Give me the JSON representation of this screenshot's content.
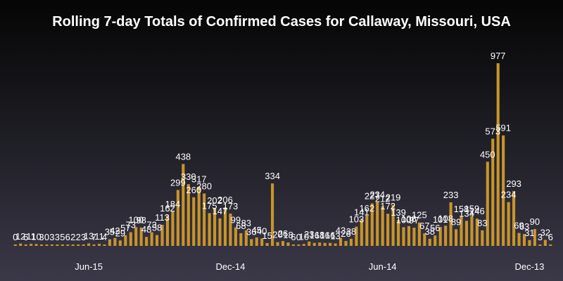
{
  "title": "Rolling 7-day Totals of Confirmed Cases for Callaway, Missouri, USA",
  "chart_data": {
    "type": "bar",
    "title": "Rolling 7-day Totals of Confirmed Cases for Callaway, Missouri, USA",
    "xlabel": "",
    "ylabel": "",
    "x_tick_labels": [
      {
        "label": "Jun-15",
        "index": 14
      },
      {
        "label": "Dec-14",
        "index": 41
      },
      {
        "label": "Jun-14",
        "index": 70
      },
      {
        "label": "Dec-13",
        "index": 98
      }
    ],
    "values": [
      0,
      12,
      6,
      11,
      10,
      3,
      0,
      3,
      3,
      5,
      6,
      2,
      2,
      3,
      13,
      7,
      11,
      4,
      35,
      42,
      29,
      57,
      73,
      100,
      98,
      48,
      73,
      58,
      113,
      162,
      184,
      299,
      438,
      330,
      260,
      317,
      280,
      175,
      202,
      147,
      206,
      173,
      99,
      68,
      83,
      36,
      45,
      40,
      15,
      334,
      20,
      26,
      18,
      6,
      0,
      10,
      23,
      16,
      18,
      16,
      16,
      13,
      43,
      26,
      38,
      103,
      141,
      162,
      227,
      234,
      212,
      172,
      219,
      139,
      100,
      106,
      97,
      125,
      67,
      38,
      56,
      101,
      108,
      233,
      89,
      158,
      134,
      159,
      146,
      83,
      450,
      573,
      977,
      591,
      234,
      293,
      69,
      63,
      31,
      90,
      3,
      32,
      6
    ],
    "bar_color": "#c8952b",
    "label_color": "#ffffff",
    "ylim": [
      0,
      1000
    ],
    "grid": false,
    "legend": "none"
  }
}
